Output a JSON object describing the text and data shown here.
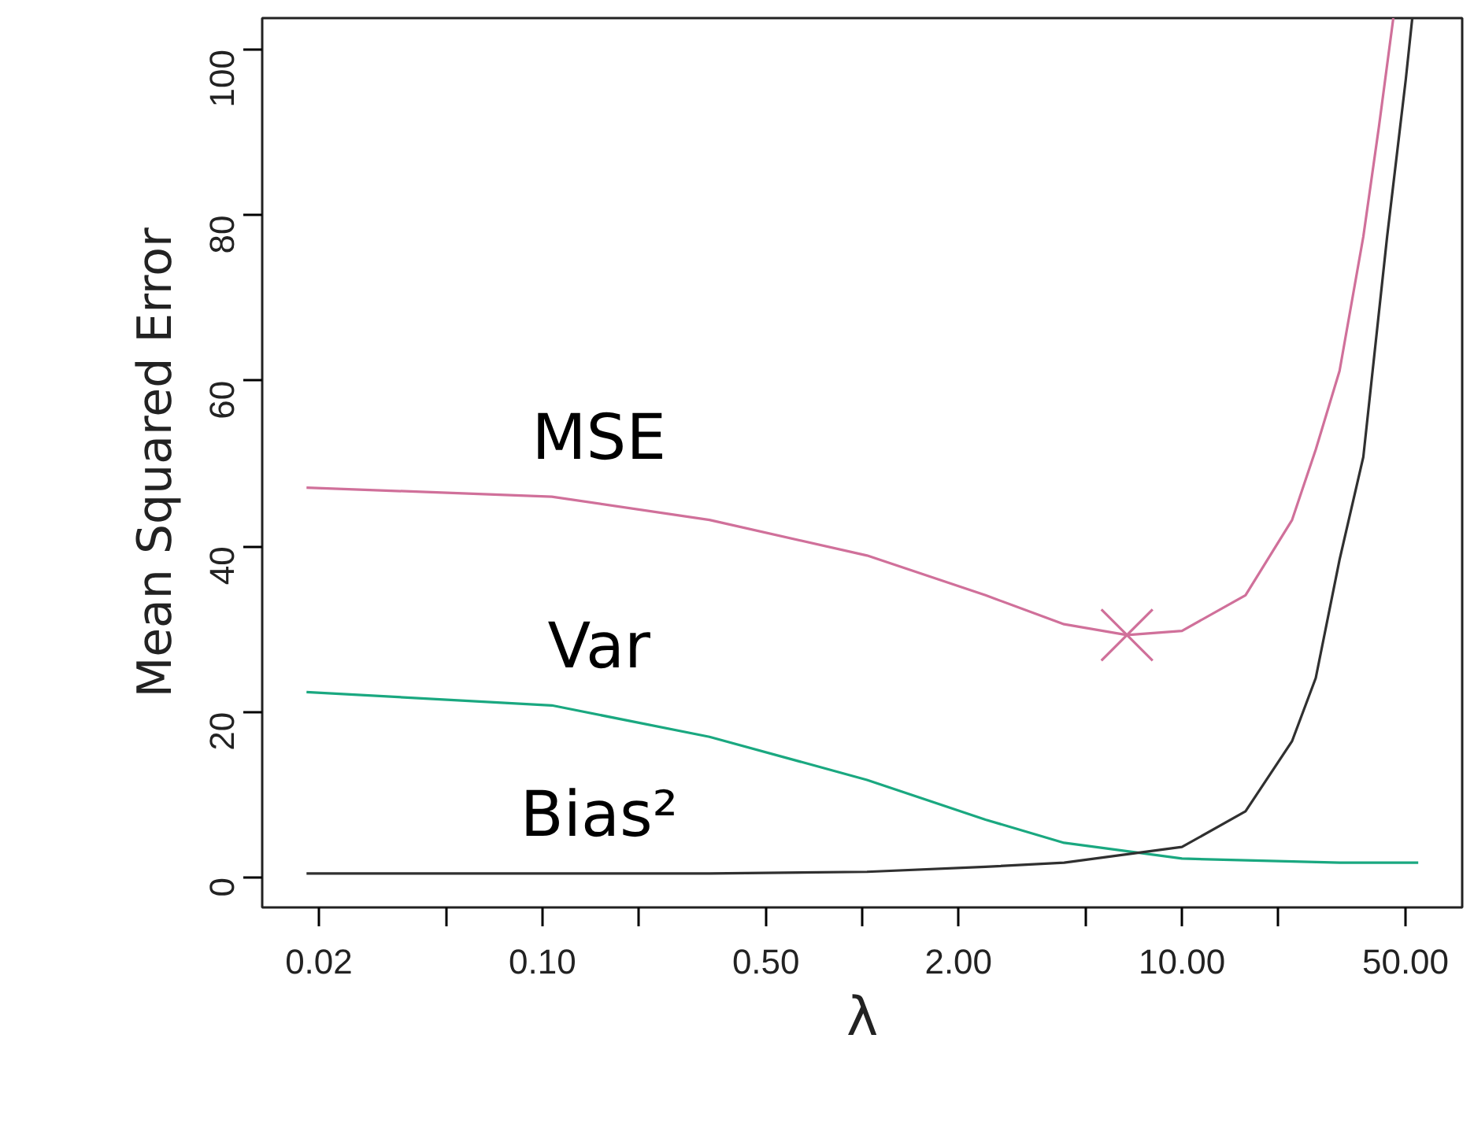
{
  "chart_data": {
    "type": "line",
    "xlabel": "λ",
    "ylabel": "Mean Squared Error",
    "log": "x",
    "grid": false,
    "xlim": [
      0.0133,
      75.2
    ],
    "ylim": [
      -3.6,
      103.8
    ],
    "xticks": [
      0.02,
      {
        "value": 0.05,
        "label": null
      },
      {
        "value": 0.1,
        "label": "0.10"
      },
      {
        "value": 0.2,
        "label": null
      },
      {
        "value": 0.5,
        "label": "0.50"
      },
      {
        "value": 1,
        "label": null
      },
      {
        "value": 2,
        "label": "2.00"
      },
      {
        "value": 5,
        "label": null
      },
      {
        "value": 10,
        "label": "10.00"
      },
      {
        "value": 20,
        "label": null
      },
      {
        "value": 50,
        "label": "50.00"
      }
    ],
    "yticks": [
      0,
      20,
      40,
      60,
      80,
      100
    ],
    "series": [
      {
        "name": "MSE",
        "color": "#d0709a",
        "marker": "none",
        "x": [
          0.0183,
          0.107,
          0.333,
          1.035,
          2.43,
          4.28,
          6.73,
          10.0,
          15.8,
          22.1,
          26.2,
          31.1,
          36.9,
          41.3,
          45.8
        ],
        "values": [
          47.1,
          46.0,
          43.2,
          38.9,
          34.1,
          30.6,
          29.3,
          29.8,
          34.1,
          43.2,
          51.7,
          61.2,
          77.4,
          90.7,
          103.8
        ]
      },
      {
        "name": "Var",
        "color": "#1aa880",
        "marker": "none",
        "x": [
          0.0183,
          0.107,
          0.333,
          1.035,
          2.43,
          4.28,
          10.0,
          31.1,
          54.8
        ],
        "values": [
          22.4,
          20.8,
          17.0,
          11.8,
          7.0,
          4.2,
          2.3,
          1.8,
          1.8
        ]
      },
      {
        "name": "Bias²",
        "color": "#303030",
        "marker": "none",
        "x": [
          0.0183,
          0.107,
          0.333,
          1.035,
          2.43,
          4.28,
          10.0,
          15.8,
          22.1,
          26.2,
          31.1,
          36.9,
          43.8,
          50.1,
          52.5
        ],
        "values": [
          0.5,
          0.5,
          0.5,
          0.7,
          1.3,
          1.8,
          3.7,
          8.0,
          16.5,
          24.1,
          38.4,
          50.8,
          77.4,
          96.4,
          103.8
        ]
      },
      {
        "type": "scatter",
        "color": "#d0709a",
        "marker": "cross",
        "x": [
          6.73
        ],
        "values": [
          29.3
        ]
      }
    ]
  }
}
